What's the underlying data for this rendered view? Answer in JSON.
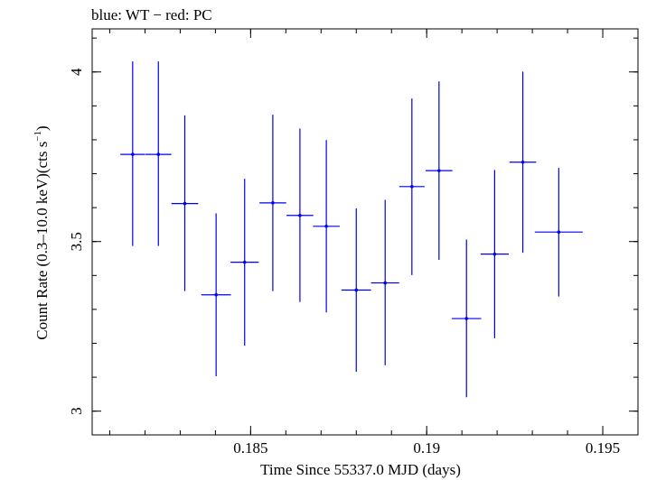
{
  "header": {
    "legend_text": "blue: WT − red: PC"
  },
  "colors": {
    "series": "#0000ee",
    "axis": "#000000",
    "background": "#ffffff"
  },
  "chart_data": {
    "type": "scatter",
    "title": "blue: WT − red: PC",
    "xlabel": "Time Since 55337.0 MJD (days)",
    "ylabel_main": "Count Rate (0.3–10.0 keV)(cts s",
    "ylabel_sup": "−1",
    "ylabel_tail": ")",
    "xlim": [
      0.1805,
      0.196
    ],
    "ylim": [
      2.93,
      4.127
    ],
    "x_ticks": [
      {
        "value": 0.185,
        "label": "0.185"
      },
      {
        "value": 0.19,
        "label": "0.19"
      },
      {
        "value": 0.195,
        "label": "0.195"
      }
    ],
    "x_minor_step": 0.001,
    "y_ticks": [
      {
        "value": 3.0,
        "label": "3"
      },
      {
        "value": 3.5,
        "label": "3.5"
      },
      {
        "value": 4.0,
        "label": "4"
      }
    ],
    "y_minor_step": 0.1,
    "grid": false,
    "series": [
      {
        "name": "WT",
        "color": "#0000ee",
        "points": [
          {
            "x": 0.18165,
            "xerr": 0.00035,
            "y": 3.757,
            "y_low": 3.487,
            "y_high": 4.031
          },
          {
            "x": 0.18238,
            "xerr": 0.00037,
            "y": 3.757,
            "y_low": 3.487,
            "y_high": 4.031
          },
          {
            "x": 0.18313,
            "xerr": 0.00038,
            "y": 3.612,
            "y_low": 3.354,
            "y_high": 3.872
          },
          {
            "x": 0.18402,
            "xerr": 0.00042,
            "y": 3.343,
            "y_low": 3.103,
            "y_high": 3.583
          },
          {
            "x": 0.18483,
            "xerr": 0.0004,
            "y": 3.439,
            "y_low": 3.193,
            "y_high": 3.685
          },
          {
            "x": 0.18563,
            "xerr": 0.00038,
            "y": 3.614,
            "y_low": 3.354,
            "y_high": 3.874
          },
          {
            "x": 0.1864,
            "xerr": 0.00038,
            "y": 3.577,
            "y_low": 3.322,
            "y_high": 3.833
          },
          {
            "x": 0.18715,
            "xerr": 0.00038,
            "y": 3.545,
            "y_low": 3.291,
            "y_high": 3.799
          },
          {
            "x": 0.188,
            "xerr": 0.00042,
            "y": 3.357,
            "y_low": 3.116,
            "y_high": 3.598
          },
          {
            "x": 0.18882,
            "xerr": 0.0004,
            "y": 3.378,
            "y_low": 3.135,
            "y_high": 3.623
          },
          {
            "x": 0.18958,
            "xerr": 0.00036,
            "y": 3.662,
            "y_low": 3.401,
            "y_high": 3.922
          },
          {
            "x": 0.19035,
            "xerr": 0.00038,
            "y": 3.709,
            "y_low": 3.446,
            "y_high": 3.972
          },
          {
            "x": 0.19113,
            "xerr": 0.00042,
            "y": 3.273,
            "y_low": 3.041,
            "y_high": 3.506
          },
          {
            "x": 0.19193,
            "xerr": 0.0004,
            "y": 3.463,
            "y_low": 3.215,
            "y_high": 3.711
          },
          {
            "x": 0.19273,
            "xerr": 0.00038,
            "y": 3.734,
            "y_low": 3.467,
            "y_high": 4.001
          },
          {
            "x": 0.19375,
            "xerr": 0.00068,
            "y": 3.528,
            "y_low": 3.338,
            "y_high": 3.717
          }
        ]
      }
    ]
  }
}
